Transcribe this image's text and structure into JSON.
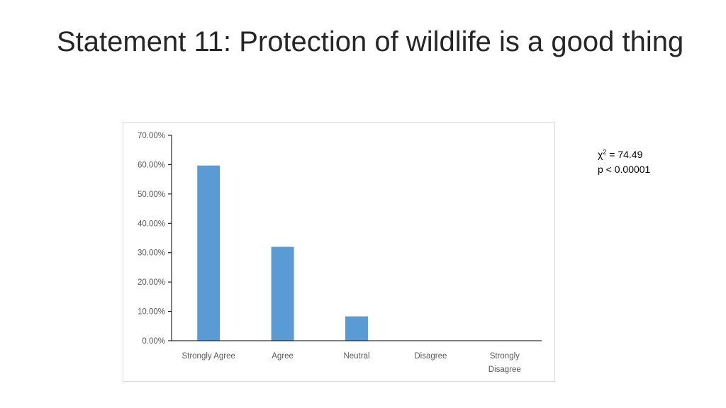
{
  "slide": {
    "title": "Statement 11:  Protection of wildlife is a good thing"
  },
  "stats": {
    "chi_symbol": "χ",
    "chi_exponent": "2",
    "chi_value": " = 74.49",
    "p_value": "p < 0.00001"
  },
  "colors": {
    "bar": "#5b9bd5",
    "axis": "#000000",
    "tick_label": "#595959"
  },
  "chart_data": {
    "type": "bar",
    "categories": [
      "Strongly Agree",
      "Agree",
      "Neutral",
      "Disagree",
      "Strongly Disagree"
    ],
    "category_label_lines": [
      [
        "Strongly Agree"
      ],
      [
        "Agree"
      ],
      [
        "Neutral"
      ],
      [
        "Disagree"
      ],
      [
        "Strongly",
        "Disagree"
      ]
    ],
    "values": [
      59.7,
      32.0,
      8.3,
      0.0,
      0.0
    ],
    "ylim": [
      0,
      70
    ],
    "yticks": [
      0,
      10,
      20,
      30,
      40,
      50,
      60,
      70
    ],
    "ytick_labels": [
      "0.00%",
      "10.00%",
      "20.00%",
      "30.00%",
      "40.00%",
      "50.00%",
      "60.00%",
      "70.00%"
    ],
    "title": "",
    "xlabel": "",
    "ylabel": "",
    "grid": false,
    "legend": "none"
  }
}
